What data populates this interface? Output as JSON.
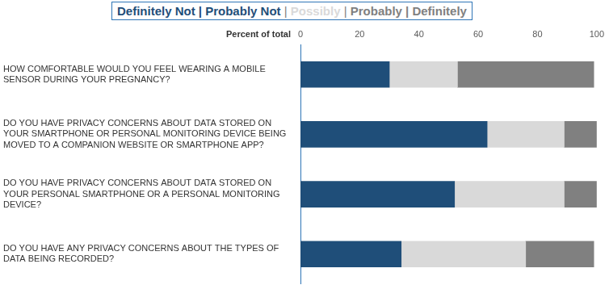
{
  "chart_data": {
    "type": "bar",
    "orientation": "horizontal",
    "stacked": true,
    "xlabel": "Percent of total",
    "categories": [
      "HOW COMFORTABLE WOULD YOU FEEL WEARING A MOBILE SENSOR DURING YOUR PREGNANCY?",
      "DO YOU HAVE PRIVACY CONCERNS ABOUT DATA STORED ON YOUR SMARTPHONE OR PERSONAL MONITORING DEVICE BEING MOVED TO A COMPANION WEBSITE OR SMARTPHONE APP?",
      "DO YOU HAVE PRIVACY CONCERNS ABOUT DATA STORED ON YOUR PERSONAL SMARTPHONE OR A PERSONAL MONITORING DEVICE?",
      "DO YOU HAVE ANY PRIVACY CONCERNS ABOUT THE TYPES OF DATA BEING RECORDED?"
    ],
    "series": [
      {
        "name": "Definitely Not | Probably Not",
        "color": "#1f4e79",
        "values": [
          30,
          63,
          52,
          34
        ]
      },
      {
        "name": "Possibly",
        "color": "#d9d9d9",
        "values": [
          23,
          26,
          37,
          42
        ]
      },
      {
        "name": "Probably | Definitely",
        "color": "#808080",
        "values": [
          46,
          11,
          11,
          23
        ]
      }
    ],
    "xlim": [
      0,
      100
    ],
    "xticks": [
      0,
      20,
      40,
      60,
      80,
      100
    ],
    "grid": false,
    "legend": "top",
    "data_labels": false
  }
}
